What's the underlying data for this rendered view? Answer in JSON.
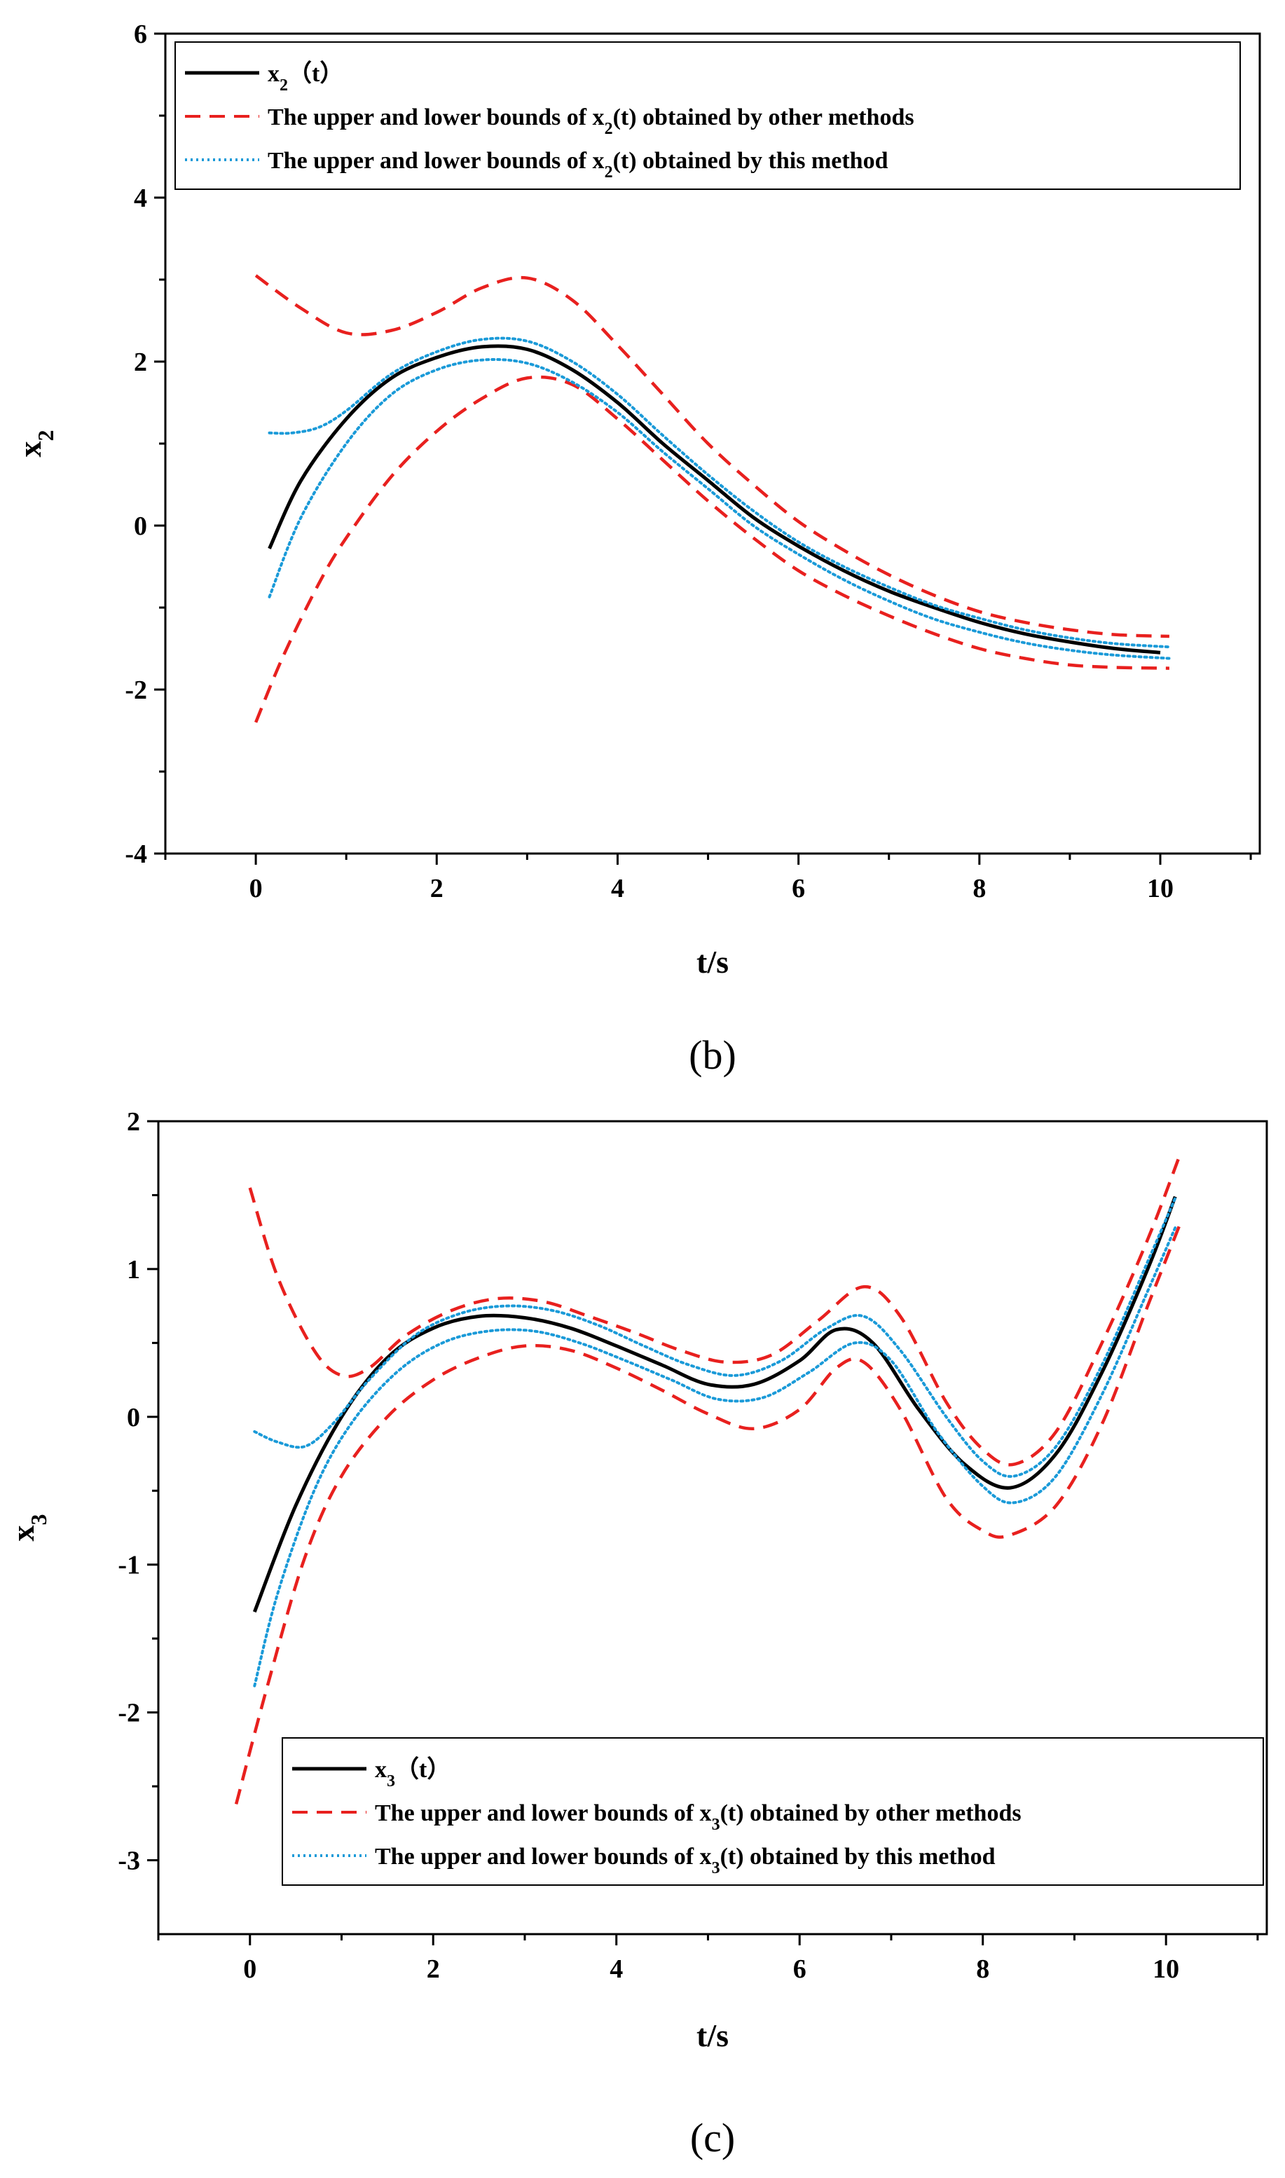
{
  "chart_data": [
    {
      "type": "line",
      "panel_label": "(b)",
      "xlabel": "t/s",
      "ylabel": "x",
      "ylabel_sub": "2",
      "xlim": [
        -1,
        11.1
      ],
      "ylim": [
        -4,
        6
      ],
      "xticks": [
        0,
        2,
        4,
        6,
        8,
        10
      ],
      "yticks": [
        -4,
        -2,
        0,
        2,
        4,
        6
      ],
      "xtick_labels": [
        "0",
        "2",
        "4",
        "6",
        "8",
        "10"
      ],
      "ytick_labels": [
        "-4",
        "-2",
        "0",
        "2",
        "4",
        "6"
      ],
      "legend": {
        "position": "top-left",
        "entries": [
          {
            "pre": "x",
            "sub": "2",
            "post": "（t）",
            "style": "solid",
            "color": "#000000"
          },
          {
            "pre": "The upper and lower bounds of x",
            "sub": "2",
            "post": "(t) obtained by other methods",
            "style": "dashed",
            "color": "#e8201e"
          },
          {
            "pre": "The upper and lower bounds of x",
            "sub": "2",
            "post": "(t) obtained by this method",
            "style": "dotted",
            "color": "#1a9ad8"
          }
        ]
      },
      "series": [
        {
          "name": "x2(t)",
          "style": "solid",
          "color": "#000000",
          "points": [
            [
              0.15,
              -0.28
            ],
            [
              0.5,
              0.55
            ],
            [
              1.0,
              1.3
            ],
            [
              1.5,
              1.8
            ],
            [
              2.0,
              2.05
            ],
            [
              2.5,
              2.18
            ],
            [
              3.0,
              2.15
            ],
            [
              3.5,
              1.9
            ],
            [
              4.0,
              1.5
            ],
            [
              4.5,
              1.0
            ],
            [
              5.0,
              0.55
            ],
            [
              5.5,
              0.1
            ],
            [
              6.0,
              -0.25
            ],
            [
              6.5,
              -0.55
            ],
            [
              7.0,
              -0.8
            ],
            [
              7.5,
              -1.0
            ],
            [
              8.0,
              -1.18
            ],
            [
              8.5,
              -1.32
            ],
            [
              9.0,
              -1.42
            ],
            [
              9.5,
              -1.5
            ],
            [
              10.0,
              -1.55
            ]
          ]
        },
        {
          "name": "Upper bound (other methods)",
          "style": "dashed",
          "color": "#e8201e",
          "points": [
            [
              0.0,
              3.05
            ],
            [
              0.5,
              2.65
            ],
            [
              1.0,
              2.35
            ],
            [
              1.5,
              2.38
            ],
            [
              2.0,
              2.6
            ],
            [
              2.5,
              2.9
            ],
            [
              3.0,
              3.02
            ],
            [
              3.5,
              2.75
            ],
            [
              4.0,
              2.2
            ],
            [
              4.5,
              1.6
            ],
            [
              5.0,
              1.0
            ],
            [
              5.5,
              0.5
            ],
            [
              6.0,
              0.05
            ],
            [
              6.5,
              -0.3
            ],
            [
              7.0,
              -0.6
            ],
            [
              7.5,
              -0.85
            ],
            [
              8.0,
              -1.05
            ],
            [
              8.5,
              -1.18
            ],
            [
              9.0,
              -1.27
            ],
            [
              9.5,
              -1.33
            ],
            [
              10.1,
              -1.35
            ]
          ]
        },
        {
          "name": "Lower bound (other methods)",
          "style": "dashed",
          "color": "#e8201e",
          "points": [
            [
              0.0,
              -2.4
            ],
            [
              0.3,
              -1.6
            ],
            [
              0.7,
              -0.7
            ],
            [
              1.0,
              -0.15
            ],
            [
              1.5,
              0.6
            ],
            [
              2.0,
              1.15
            ],
            [
              2.5,
              1.55
            ],
            [
              3.0,
              1.8
            ],
            [
              3.5,
              1.72
            ],
            [
              4.0,
              1.3
            ],
            [
              4.5,
              0.8
            ],
            [
              5.0,
              0.3
            ],
            [
              5.5,
              -0.15
            ],
            [
              6.0,
              -0.55
            ],
            [
              6.5,
              -0.85
            ],
            [
              7.0,
              -1.1
            ],
            [
              7.5,
              -1.32
            ],
            [
              8.0,
              -1.5
            ],
            [
              8.5,
              -1.62
            ],
            [
              9.0,
              -1.7
            ],
            [
              9.5,
              -1.73
            ],
            [
              10.1,
              -1.74
            ]
          ]
        },
        {
          "name": "Upper bound (this method)",
          "style": "dotted",
          "color": "#1a9ad8",
          "points": [
            [
              0.15,
              1.13
            ],
            [
              0.4,
              1.13
            ],
            [
              0.7,
              1.2
            ],
            [
              1.0,
              1.4
            ],
            [
              1.5,
              1.85
            ],
            [
              2.0,
              2.12
            ],
            [
              2.5,
              2.27
            ],
            [
              3.0,
              2.25
            ],
            [
              3.5,
              2.0
            ],
            [
              4.0,
              1.6
            ],
            [
              4.5,
              1.1
            ],
            [
              5.0,
              0.62
            ],
            [
              5.5,
              0.18
            ],
            [
              6.0,
              -0.2
            ],
            [
              6.5,
              -0.5
            ],
            [
              7.0,
              -0.75
            ],
            [
              7.5,
              -0.97
            ],
            [
              8.0,
              -1.13
            ],
            [
              8.5,
              -1.27
            ],
            [
              9.0,
              -1.37
            ],
            [
              9.5,
              -1.44
            ],
            [
              10.1,
              -1.48
            ]
          ]
        },
        {
          "name": "Lower bound (this method)",
          "style": "dotted",
          "color": "#1a9ad8",
          "points": [
            [
              0.15,
              -0.87
            ],
            [
              0.5,
              0.1
            ],
            [
              1.0,
              1.0
            ],
            [
              1.5,
              1.6
            ],
            [
              2.0,
              1.9
            ],
            [
              2.5,
              2.02
            ],
            [
              3.0,
              1.98
            ],
            [
              3.5,
              1.75
            ],
            [
              4.0,
              1.38
            ],
            [
              4.5,
              0.9
            ],
            [
              5.0,
              0.45
            ],
            [
              5.5,
              0.0
            ],
            [
              6.0,
              -0.35
            ],
            [
              6.5,
              -0.66
            ],
            [
              7.0,
              -0.92
            ],
            [
              7.5,
              -1.14
            ],
            [
              8.0,
              -1.3
            ],
            [
              8.5,
              -1.43
            ],
            [
              9.0,
              -1.52
            ],
            [
              9.5,
              -1.58
            ],
            [
              10.1,
              -1.62
            ]
          ]
        }
      ]
    },
    {
      "type": "line",
      "panel_label": "(c)",
      "xlabel": "t/s",
      "ylabel": "x",
      "ylabel_sub": "3",
      "xlim": [
        -1,
        11.1
      ],
      "ylim": [
        -3.5,
        2
      ],
      "xticks": [
        0,
        2,
        4,
        6,
        8,
        10
      ],
      "yticks": [
        -3,
        -2,
        -1,
        0,
        1,
        2
      ],
      "xtick_labels": [
        "0",
        "2",
        "4",
        "6",
        "8",
        "10"
      ],
      "ytick_labels": [
        "-3",
        "-2",
        "-1",
        "0",
        "1",
        "2"
      ],
      "legend": {
        "position": "bottom-right",
        "entries": [
          {
            "pre": "x",
            "sub": "3",
            "post": "（t）",
            "style": "solid",
            "color": "#000000"
          },
          {
            "pre": "The upper and lower bounds of x",
            "sub": "3",
            "post": "(t) obtained by other methods",
            "style": "dashed",
            "color": "#e8201e"
          },
          {
            "pre": "The upper and lower bounds of x",
            "sub": "3",
            "post": "(t) obtained by this method",
            "style": "dotted",
            "color": "#1a9ad8"
          }
        ]
      },
      "series": [
        {
          "name": "x3(t)",
          "style": "solid",
          "color": "#000000",
          "points": [
            [
              0.05,
              -1.32
            ],
            [
              0.5,
              -0.6
            ],
            [
              1.0,
              0.0
            ],
            [
              1.5,
              0.4
            ],
            [
              2.0,
              0.6
            ],
            [
              2.5,
              0.68
            ],
            [
              3.0,
              0.67
            ],
            [
              3.5,
              0.6
            ],
            [
              4.0,
              0.48
            ],
            [
              4.5,
              0.35
            ],
            [
              5.0,
              0.22
            ],
            [
              5.5,
              0.22
            ],
            [
              6.0,
              0.38
            ],
            [
              6.4,
              0.59
            ],
            [
              6.8,
              0.5
            ],
            [
              7.3,
              0.05
            ],
            [
              7.8,
              -0.32
            ],
            [
              8.3,
              -0.48
            ],
            [
              8.8,
              -0.25
            ],
            [
              9.3,
              0.3
            ],
            [
              9.8,
              1.0
            ],
            [
              10.1,
              1.49
            ]
          ]
        },
        {
          "name": "Upper bound (other methods)",
          "style": "dashed",
          "color": "#e8201e",
          "points": [
            [
              0.0,
              1.55
            ],
            [
              0.3,
              0.95
            ],
            [
              0.7,
              0.45
            ],
            [
              1.0,
              0.28
            ],
            [
              1.3,
              0.33
            ],
            [
              1.7,
              0.55
            ],
            [
              2.2,
              0.72
            ],
            [
              2.7,
              0.8
            ],
            [
              3.2,
              0.78
            ],
            [
              3.7,
              0.68
            ],
            [
              4.2,
              0.57
            ],
            [
              4.7,
              0.45
            ],
            [
              5.2,
              0.37
            ],
            [
              5.7,
              0.42
            ],
            [
              6.2,
              0.65
            ],
            [
              6.7,
              0.88
            ],
            [
              7.1,
              0.68
            ],
            [
              7.6,
              0.1
            ],
            [
              8.0,
              -0.22
            ],
            [
              8.35,
              -0.32
            ],
            [
              8.8,
              -0.1
            ],
            [
              9.3,
              0.5
            ],
            [
              9.8,
              1.2
            ],
            [
              10.15,
              1.77
            ]
          ]
        },
        {
          "name": "Lower bound (other methods)",
          "style": "dashed",
          "color": "#e8201e",
          "points": [
            [
              -0.15,
              -2.62
            ],
            [
              0.2,
              -1.8
            ],
            [
              0.6,
              -0.95
            ],
            [
              1.0,
              -0.4
            ],
            [
              1.5,
              0.0
            ],
            [
              2.0,
              0.25
            ],
            [
              2.5,
              0.4
            ],
            [
              3.0,
              0.48
            ],
            [
              3.5,
              0.45
            ],
            [
              4.0,
              0.33
            ],
            [
              4.5,
              0.18
            ],
            [
              5.0,
              0.02
            ],
            [
              5.5,
              -0.08
            ],
            [
              6.0,
              0.05
            ],
            [
              6.4,
              0.33
            ],
            [
              6.7,
              0.37
            ],
            [
              7.1,
              0.05
            ],
            [
              7.6,
              -0.55
            ],
            [
              8.0,
              -0.77
            ],
            [
              8.3,
              -0.8
            ],
            [
              8.8,
              -0.6
            ],
            [
              9.3,
              -0.05
            ],
            [
              9.8,
              0.75
            ],
            [
              10.15,
              1.3
            ]
          ]
        },
        {
          "name": "Upper bound (this method)",
          "style": "dotted",
          "color": "#1a9ad8",
          "points": [
            [
              0.05,
              -0.1
            ],
            [
              0.3,
              -0.17
            ],
            [
              0.6,
              -0.2
            ],
            [
              0.9,
              -0.05
            ],
            [
              1.3,
              0.25
            ],
            [
              1.8,
              0.55
            ],
            [
              2.3,
              0.7
            ],
            [
              2.8,
              0.75
            ],
            [
              3.3,
              0.72
            ],
            [
              3.8,
              0.62
            ],
            [
              4.3,
              0.48
            ],
            [
              4.8,
              0.35
            ],
            [
              5.3,
              0.28
            ],
            [
              5.8,
              0.38
            ],
            [
              6.3,
              0.6
            ],
            [
              6.7,
              0.68
            ],
            [
              7.1,
              0.45
            ],
            [
              7.6,
              0.0
            ],
            [
              8.0,
              -0.3
            ],
            [
              8.35,
              -0.4
            ],
            [
              8.8,
              -0.2
            ],
            [
              9.3,
              0.35
            ],
            [
              9.8,
              1.05
            ],
            [
              10.1,
              1.48
            ]
          ]
        },
        {
          "name": "Lower bound (this method)",
          "style": "dotted",
          "color": "#1a9ad8",
          "points": [
            [
              0.05,
              -1.82
            ],
            [
              0.3,
              -1.2
            ],
            [
              0.7,
              -0.5
            ],
            [
              1.1,
              -0.05
            ],
            [
              1.6,
              0.3
            ],
            [
              2.1,
              0.5
            ],
            [
              2.6,
              0.58
            ],
            [
              3.1,
              0.58
            ],
            [
              3.6,
              0.5
            ],
            [
              4.1,
              0.38
            ],
            [
              4.6,
              0.25
            ],
            [
              5.1,
              0.12
            ],
            [
              5.6,
              0.13
            ],
            [
              6.1,
              0.3
            ],
            [
              6.6,
              0.5
            ],
            [
              7.0,
              0.38
            ],
            [
              7.5,
              -0.1
            ],
            [
              8.0,
              -0.47
            ],
            [
              8.35,
              -0.58
            ],
            [
              8.8,
              -0.4
            ],
            [
              9.3,
              0.15
            ],
            [
              9.8,
              0.85
            ],
            [
              10.1,
              1.28
            ]
          ]
        }
      ]
    }
  ]
}
